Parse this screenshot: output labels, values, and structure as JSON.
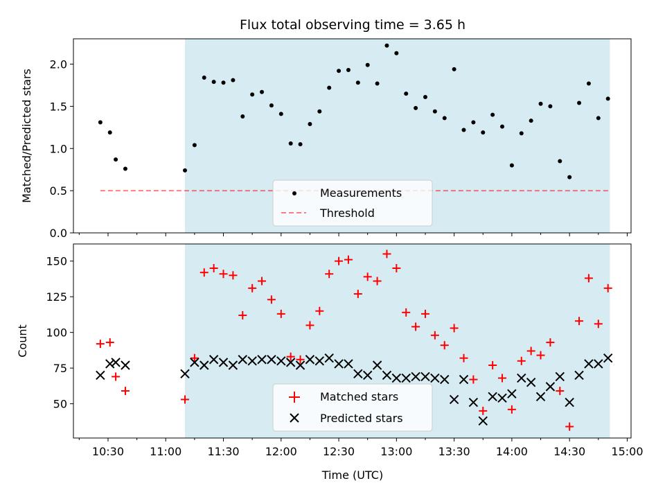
{
  "figure": {
    "title": "Flux total observing time = 3.65 h",
    "shade_color": "#add8e6",
    "shade_alpha": 0.5
  },
  "chart_data": [
    {
      "type": "scatter",
      "ylabel": "Matched/Predicted stars",
      "xlabel": "",
      "ylim": [
        0,
        2.3
      ],
      "xlim": [
        "10:12",
        "15:02"
      ],
      "x_is_time": true,
      "shaded_interval": [
        "11:10",
        "14:51"
      ],
      "yticks": [
        0.0,
        0.5,
        1.0,
        1.5,
        2.0
      ],
      "ytick_labels": [
        "0.0",
        "0.5",
        "1.0",
        "1.5",
        "2.0"
      ],
      "threshold": {
        "value": 0.5,
        "x_start": "10:26",
        "x_end": "14:51",
        "color": "#ff0000",
        "label": "Threshold"
      },
      "legend": {
        "position": "lower center",
        "entries": [
          "Measurements",
          "Threshold"
        ]
      },
      "series": [
        {
          "name": "Measurements",
          "marker": "dot",
          "color": "#000000",
          "x": [
            "10:26",
            "10:31",
            "10:34",
            "10:39",
            "11:10",
            "11:15",
            "11:20",
            "11:25",
            "11:30",
            "11:35",
            "11:40",
            "11:45",
            "11:50",
            "11:55",
            "12:00",
            "12:05",
            "12:10",
            "12:15",
            "12:20",
            "12:25",
            "12:30",
            "12:35",
            "12:40",
            "12:45",
            "12:50",
            "12:55",
            "13:00",
            "13:05",
            "13:10",
            "13:15",
            "13:20",
            "13:25",
            "13:30",
            "13:35",
            "13:40",
            "13:45",
            "13:50",
            "13:55",
            "14:00",
            "14:05",
            "14:10",
            "14:15",
            "14:20",
            "14:25",
            "14:30",
            "14:35",
            "14:40",
            "14:45",
            "14:50"
          ],
          "y": [
            1.31,
            1.19,
            0.87,
            0.76,
            0.74,
            1.04,
            1.84,
            1.79,
            1.78,
            1.81,
            1.38,
            1.64,
            1.67,
            1.51,
            1.41,
            1.06,
            1.05,
            1.29,
            1.44,
            1.72,
            1.92,
            1.93,
            1.78,
            1.99,
            1.77,
            2.22,
            2.13,
            1.65,
            1.48,
            1.61,
            1.44,
            1.36,
            1.94,
            1.22,
            1.31,
            1.19,
            1.4,
            1.26,
            0.8,
            1.18,
            1.33,
            1.53,
            1.5,
            0.85,
            0.66,
            1.54,
            1.77,
            1.36,
            1.59
          ]
        }
      ]
    },
    {
      "type": "scatter",
      "ylabel": "Count",
      "xlabel": "Time (UTC)",
      "ylim": [
        26,
        162
      ],
      "xlim": [
        "10:12",
        "15:02"
      ],
      "x_is_time": true,
      "shaded_interval": [
        "11:10",
        "14:51"
      ],
      "yticks": [
        50,
        75,
        100,
        125,
        150
      ],
      "ytick_labels": [
        "50",
        "75",
        "100",
        "125",
        "150"
      ],
      "xticks": [
        "10:30",
        "11:00",
        "11:30",
        "12:00",
        "12:30",
        "13:00",
        "13:30",
        "14:00",
        "14:30",
        "15:00"
      ],
      "xtick_labels": [
        "10:30",
        "11:00",
        "11:30",
        "12:00",
        "12:30",
        "13:00",
        "13:30",
        "14:00",
        "14:30",
        "15:00"
      ],
      "minor_xticks": [
        "10:15",
        "10:45",
        "11:15",
        "11:45",
        "12:15",
        "12:45",
        "13:15",
        "13:45",
        "14:15",
        "14:45"
      ],
      "legend": {
        "position": "lower center",
        "entries": [
          "Matched stars",
          "Predicted stars"
        ]
      },
      "series": [
        {
          "name": "Matched stars",
          "marker": "plus",
          "color": "#ff0000",
          "x": [
            "10:26",
            "10:31",
            "10:34",
            "10:39",
            "11:10",
            "11:15",
            "11:20",
            "11:25",
            "11:30",
            "11:35",
            "11:40",
            "11:45",
            "11:50",
            "11:55",
            "12:00",
            "12:05",
            "12:10",
            "12:15",
            "12:20",
            "12:25",
            "12:30",
            "12:35",
            "12:40",
            "12:45",
            "12:50",
            "12:55",
            "13:00",
            "13:05",
            "13:10",
            "13:15",
            "13:20",
            "13:25",
            "13:30",
            "13:35",
            "13:40",
            "13:45",
            "13:50",
            "13:55",
            "14:00",
            "14:05",
            "14:10",
            "14:15",
            "14:20",
            "14:25",
            "14:30",
            "14:35",
            "14:40",
            "14:45",
            "14:50"
          ],
          "y": [
            92,
            93,
            69,
            59,
            53,
            82,
            142,
            145,
            141,
            140,
            112,
            131,
            136,
            123,
            113,
            83,
            81,
            105,
            115,
            141,
            150,
            151,
            127,
            139,
            136,
            155,
            145,
            114,
            104,
            113,
            98,
            91,
            103,
            82,
            67,
            45,
            77,
            68,
            46,
            80,
            87,
            84,
            93,
            59,
            34,
            108,
            138,
            106,
            131
          ]
        },
        {
          "name": "Predicted stars",
          "marker": "x",
          "color": "#000000",
          "x": [
            "10:26",
            "10:31",
            "10:34",
            "10:39",
            "11:10",
            "11:15",
            "11:20",
            "11:25",
            "11:30",
            "11:35",
            "11:40",
            "11:45",
            "11:50",
            "11:55",
            "12:00",
            "12:05",
            "12:10",
            "12:15",
            "12:20",
            "12:25",
            "12:30",
            "12:35",
            "12:40",
            "12:45",
            "12:50",
            "12:55",
            "13:00",
            "13:05",
            "13:10",
            "13:15",
            "13:20",
            "13:25",
            "13:30",
            "13:35",
            "13:40",
            "13:45",
            "13:50",
            "13:55",
            "14:00",
            "14:05",
            "14:10",
            "14:15",
            "14:20",
            "14:25",
            "14:30",
            "14:35",
            "14:40",
            "14:45",
            "14:50"
          ],
          "y": [
            70,
            78,
            79,
            77,
            71,
            79,
            77,
            81,
            79,
            77,
            81,
            80,
            81,
            81,
            80,
            79,
            77,
            81,
            80,
            82,
            78,
            78,
            71,
            70,
            77,
            70,
            68,
            68,
            69,
            69,
            68,
            67,
            53,
            67,
            51,
            38,
            55,
            54,
            57,
            68,
            65,
            55,
            62,
            69,
            51,
            70,
            78,
            78,
            82
          ]
        }
      ]
    }
  ]
}
